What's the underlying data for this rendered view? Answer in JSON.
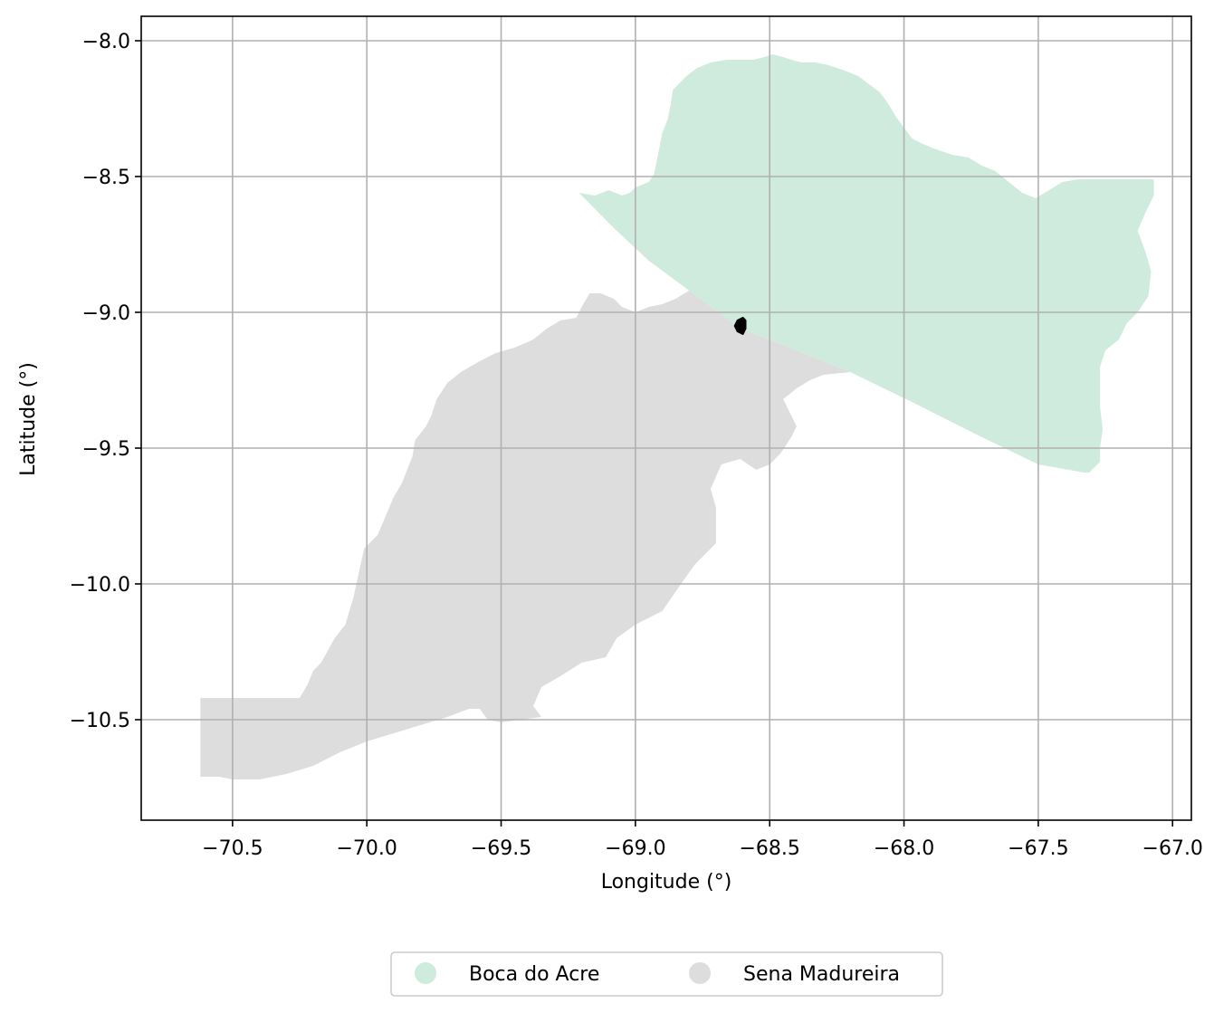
{
  "chart_data": {
    "type": "map",
    "xlabel": "Longitude (°)",
    "ylabel": "Latitude (°)",
    "xlim": [
      -70.84,
      -66.93
    ],
    "ylim": [
      -10.87,
      -7.91
    ],
    "grid": true,
    "x_ticks": [
      {
        "value": -70.5,
        "label": "−70.5"
      },
      {
        "value": -70.0,
        "label": "−70.0"
      },
      {
        "value": -69.5,
        "label": "−69.5"
      },
      {
        "value": -69.0,
        "label": "−69.0"
      },
      {
        "value": -68.5,
        "label": "−68.5"
      },
      {
        "value": -68.0,
        "label": "−68.0"
      },
      {
        "value": -67.5,
        "label": "−67.5"
      },
      {
        "value": -67.0,
        "label": "−67.0"
      }
    ],
    "y_ticks": [
      {
        "value": -8.0,
        "label": "−8.0"
      },
      {
        "value": -8.5,
        "label": "−8.5"
      },
      {
        "value": -9.0,
        "label": "−9.0"
      },
      {
        "value": -9.5,
        "label": "−9.5"
      },
      {
        "value": -10.0,
        "label": "−10.0"
      },
      {
        "value": -10.5,
        "label": "−10.5"
      }
    ],
    "legend_position": "bottom-center, outside plot",
    "series": [
      {
        "name": "Boca do Acre",
        "color": "#cfebdd",
        "polygon": [
          [
            -69.21,
            -8.56
          ],
          [
            -69.15,
            -8.57
          ],
          [
            -69.1,
            -8.55
          ],
          [
            -69.05,
            -8.57
          ],
          [
            -69.02,
            -8.56
          ],
          [
            -69.0,
            -8.54
          ],
          [
            -68.95,
            -8.52
          ],
          [
            -68.93,
            -8.49
          ],
          [
            -68.92,
            -8.44
          ],
          [
            -68.91,
            -8.39
          ],
          [
            -68.9,
            -8.34
          ],
          [
            -68.88,
            -8.29
          ],
          [
            -68.87,
            -8.24
          ],
          [
            -68.86,
            -8.18
          ],
          [
            -68.84,
            -8.16
          ],
          [
            -68.81,
            -8.13
          ],
          [
            -68.77,
            -8.1
          ],
          [
            -68.72,
            -8.08
          ],
          [
            -68.66,
            -8.07
          ],
          [
            -68.6,
            -8.07
          ],
          [
            -68.56,
            -8.07
          ],
          [
            -68.52,
            -8.06
          ],
          [
            -68.49,
            -8.05
          ],
          [
            -68.45,
            -8.06
          ],
          [
            -68.42,
            -8.07
          ],
          [
            -68.38,
            -8.08
          ],
          [
            -68.33,
            -8.08
          ],
          [
            -68.28,
            -8.09
          ],
          [
            -68.22,
            -8.11
          ],
          [
            -68.17,
            -8.13
          ],
          [
            -68.13,
            -8.16
          ],
          [
            -68.09,
            -8.19
          ],
          [
            -68.06,
            -8.23
          ],
          [
            -68.03,
            -8.28
          ],
          [
            -68.0,
            -8.32
          ],
          [
            -67.97,
            -8.36
          ],
          [
            -67.93,
            -8.38
          ],
          [
            -67.88,
            -8.4
          ],
          [
            -67.82,
            -8.42
          ],
          [
            -67.76,
            -8.43
          ],
          [
            -67.71,
            -8.46
          ],
          [
            -67.66,
            -8.48
          ],
          [
            -67.61,
            -8.52
          ],
          [
            -67.56,
            -8.56
          ],
          [
            -67.51,
            -8.58
          ],
          [
            -67.46,
            -8.55
          ],
          [
            -67.41,
            -8.52
          ],
          [
            -67.35,
            -8.51
          ],
          [
            -67.2,
            -8.51
          ],
          [
            -67.07,
            -8.51
          ],
          [
            -67.07,
            -8.57
          ],
          [
            -67.1,
            -8.63
          ],
          [
            -67.13,
            -8.7
          ],
          [
            -67.1,
            -8.78
          ],
          [
            -67.08,
            -8.85
          ],
          [
            -67.09,
            -8.94
          ],
          [
            -67.13,
            -9.0
          ],
          [
            -67.17,
            -9.04
          ],
          [
            -67.2,
            -9.1
          ],
          [
            -67.25,
            -9.14
          ],
          [
            -67.27,
            -9.2
          ],
          [
            -67.27,
            -9.28
          ],
          [
            -67.27,
            -9.35
          ],
          [
            -67.26,
            -9.43
          ],
          [
            -67.27,
            -9.5
          ],
          [
            -67.27,
            -9.55
          ],
          [
            -67.31,
            -9.59
          ],
          [
            -67.33,
            -9.59
          ],
          [
            -67.5,
            -9.56
          ],
          [
            -67.73,
            -9.45
          ],
          [
            -67.95,
            -9.34
          ],
          [
            -68.2,
            -9.22
          ],
          [
            -68.45,
            -9.12
          ],
          [
            -68.61,
            -9.06
          ],
          [
            -68.8,
            -8.92
          ],
          [
            -68.95,
            -8.81
          ],
          [
            -69.08,
            -8.69
          ],
          [
            -69.21,
            -8.56
          ]
        ]
      },
      {
        "name": "Sena Madureira",
        "color": "#dddddd",
        "polygon": [
          [
            -68.61,
            -9.06
          ],
          [
            -68.8,
            -8.92
          ],
          [
            -68.85,
            -8.95
          ],
          [
            -68.9,
            -8.97
          ],
          [
            -68.95,
            -8.98
          ],
          [
            -69.0,
            -9.0
          ],
          [
            -69.05,
            -8.98
          ],
          [
            -69.08,
            -8.95
          ],
          [
            -69.13,
            -8.93
          ],
          [
            -69.17,
            -8.93
          ],
          [
            -69.2,
            -8.98
          ],
          [
            -69.22,
            -9.02
          ],
          [
            -69.28,
            -9.03
          ],
          [
            -69.33,
            -9.06
          ],
          [
            -69.38,
            -9.1
          ],
          [
            -69.45,
            -9.13
          ],
          [
            -69.52,
            -9.15
          ],
          [
            -69.58,
            -9.18
          ],
          [
            -69.65,
            -9.22
          ],
          [
            -69.7,
            -9.26
          ],
          [
            -69.74,
            -9.32
          ],
          [
            -69.76,
            -9.38
          ],
          [
            -69.78,
            -9.42
          ],
          [
            -69.82,
            -9.47
          ],
          [
            -69.83,
            -9.53
          ],
          [
            -69.85,
            -9.58
          ],
          [
            -69.87,
            -9.63
          ],
          [
            -69.9,
            -9.68
          ],
          [
            -69.93,
            -9.75
          ],
          [
            -69.96,
            -9.82
          ],
          [
            -70.01,
            -9.87
          ],
          [
            -70.03,
            -9.96
          ],
          [
            -70.05,
            -10.05
          ],
          [
            -70.08,
            -10.15
          ],
          [
            -70.12,
            -10.2
          ],
          [
            -70.17,
            -10.29
          ],
          [
            -70.2,
            -10.32
          ],
          [
            -70.22,
            -10.37
          ],
          [
            -70.25,
            -10.42
          ],
          [
            -70.62,
            -10.42
          ],
          [
            -70.62,
            -10.71
          ],
          [
            -70.55,
            -10.71
          ],
          [
            -70.5,
            -10.72
          ],
          [
            -70.45,
            -10.72
          ],
          [
            -70.4,
            -10.72
          ],
          [
            -70.3,
            -10.7
          ],
          [
            -70.2,
            -10.67
          ],
          [
            -70.1,
            -10.62
          ],
          [
            -70.0,
            -10.58
          ],
          [
            -69.9,
            -10.55
          ],
          [
            -69.8,
            -10.52
          ],
          [
            -69.7,
            -10.49
          ],
          [
            -69.62,
            -10.46
          ],
          [
            -69.58,
            -10.46
          ],
          [
            -69.55,
            -10.5
          ],
          [
            -69.5,
            -10.51
          ],
          [
            -69.35,
            -10.49
          ],
          [
            -69.38,
            -10.45
          ],
          [
            -69.35,
            -10.38
          ],
          [
            -69.28,
            -10.34
          ],
          [
            -69.2,
            -10.29
          ],
          [
            -69.11,
            -10.27
          ],
          [
            -69.07,
            -10.2
          ],
          [
            -69.0,
            -10.15
          ],
          [
            -68.9,
            -10.1
          ],
          [
            -68.83,
            -10.0
          ],
          [
            -68.78,
            -9.93
          ],
          [
            -68.7,
            -9.85
          ],
          [
            -68.7,
            -9.72
          ],
          [
            -68.72,
            -9.65
          ],
          [
            -68.68,
            -9.56
          ],
          [
            -68.61,
            -9.54
          ],
          [
            -68.55,
            -9.58
          ],
          [
            -68.5,
            -9.56
          ],
          [
            -68.46,
            -9.52
          ],
          [
            -68.42,
            -9.46
          ],
          [
            -68.4,
            -9.42
          ],
          [
            -68.42,
            -9.38
          ],
          [
            -68.45,
            -9.32
          ],
          [
            -68.4,
            -9.28
          ],
          [
            -68.35,
            -9.25
          ],
          [
            -68.3,
            -9.23
          ],
          [
            -68.2,
            -9.22
          ],
          [
            -68.45,
            -9.12
          ],
          [
            -68.61,
            -9.06
          ]
        ]
      },
      {
        "name": "",
        "color": "#000000",
        "polygon": [
          [
            -68.63,
            -9.05
          ],
          [
            -68.62,
            -9.03
          ],
          [
            -68.6,
            -9.02
          ],
          [
            -68.59,
            -9.03
          ],
          [
            -68.59,
            -9.06
          ],
          [
            -68.6,
            -9.08
          ],
          [
            -68.62,
            -9.07
          ]
        ]
      }
    ],
    "legend": [
      {
        "label": "Boca do Acre",
        "color": "#cfebdd"
      },
      {
        "label": "Sena Madureira",
        "color": "#dddddd"
      }
    ]
  }
}
